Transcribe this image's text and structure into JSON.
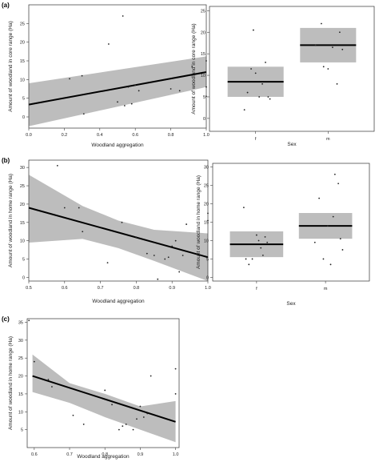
{
  "chart_data": [
    {
      "panel": "(a)",
      "type": "scatter",
      "xlabel": "Woodland aggregation",
      "ylabel": "Amount of woodland in core range (Ha)",
      "xlim": [
        0.0,
        1.0
      ],
      "ylim": [
        -3,
        30
      ],
      "xticks": [
        0.0,
        0.2,
        0.4,
        0.6,
        0.8,
        1.0
      ],
      "yticks": [
        0,
        5,
        10,
        15,
        20,
        25
      ],
      "points": [
        {
          "x": 0.23,
          "y": 10.2
        },
        {
          "x": 0.3,
          "y": 11.0
        },
        {
          "x": 0.31,
          "y": 0.8
        },
        {
          "x": 0.45,
          "y": 19.5
        },
        {
          "x": 0.5,
          "y": 4.0
        },
        {
          "x": 0.53,
          "y": 27.0
        },
        {
          "x": 0.54,
          "y": 3.0
        },
        {
          "x": 0.56,
          "y": 8.0
        },
        {
          "x": 0.58,
          "y": 3.5
        },
        {
          "x": 0.6,
          "y": 8.5
        },
        {
          "x": 0.62,
          "y": 7.0
        },
        {
          "x": 0.8,
          "y": 7.5
        },
        {
          "x": 0.85,
          "y": 7.0
        },
        {
          "x": 0.92,
          "y": 13.5
        },
        {
          "x": 1.0,
          "y": 15.0
        },
        {
          "x": 1.0,
          "y": 8.0
        },
        {
          "x": 1.0,
          "y": 5.5
        }
      ],
      "fit": {
        "x": [
          0.0,
          1.0
        ],
        "y": [
          3.3,
          12.0
        ]
      },
      "band": {
        "x": [
          0.0,
          1.0
        ],
        "lower": [
          -2.5,
          8.0
        ],
        "upper": [
          9.0,
          16.2
        ]
      }
    },
    {
      "panel": "",
      "type": "box",
      "xlabel": "Sex",
      "ylabel": "Amount of woodland in core range (Ha)",
      "categories": [
        "f",
        "m"
      ],
      "ylim": [
        -3,
        26
      ],
      "yticks": [
        0,
        5,
        10,
        15,
        20,
        25
      ],
      "boxes": [
        {
          "mean": 8.5,
          "lower": 5.0,
          "upper": 12.0
        },
        {
          "mean": 17.0,
          "lower": 13.0,
          "upper": 21.0
        }
      ],
      "points": [
        {
          "cat": 0,
          "offset": -0.25,
          "y": 2.0
        },
        {
          "cat": 0,
          "offset": -0.18,
          "y": 6.0
        },
        {
          "cat": 0,
          "offset": -0.1,
          "y": 11.5
        },
        {
          "cat": 0,
          "offset": -0.05,
          "y": 20.5
        },
        {
          "cat": 0,
          "offset": 0.0,
          "y": 10.5
        },
        {
          "cat": 0,
          "offset": 0.08,
          "y": 5.0
        },
        {
          "cat": 0,
          "offset": 0.15,
          "y": 8.0
        },
        {
          "cat": 0,
          "offset": 0.22,
          "y": 13.0
        },
        {
          "cat": 0,
          "offset": 0.28,
          "y": 5.0
        },
        {
          "cat": 0,
          "offset": 0.32,
          "y": 4.5
        },
        {
          "cat": 1,
          "offset": -0.28,
          "y": 17.0
        },
        {
          "cat": 1,
          "offset": -0.15,
          "y": 22.0
        },
        {
          "cat": 1,
          "offset": -0.1,
          "y": 12.0
        },
        {
          "cat": 1,
          "offset": 0.0,
          "y": 11.5
        },
        {
          "cat": 1,
          "offset": 0.1,
          "y": 16.5
        },
        {
          "cat": 1,
          "offset": 0.2,
          "y": 8.0
        },
        {
          "cat": 1,
          "offset": 0.26,
          "y": 20.0
        },
        {
          "cat": 1,
          "offset": 0.32,
          "y": 16.0
        }
      ]
    },
    {
      "panel": "(b)",
      "type": "scatter",
      "xlabel": "Woodland aggregation",
      "ylabel": "Amount of woodland in home range (Ha)",
      "xlim": [
        0.5,
        1.0
      ],
      "ylim": [
        -1,
        32
      ],
      "xticks": [
        0.5,
        0.6,
        0.7,
        0.8,
        0.9,
        1.0
      ],
      "yticks": [
        0,
        5,
        10,
        15,
        20,
        25,
        30
      ],
      "points": [
        {
          "x": 0.58,
          "y": 30.5
        },
        {
          "x": 0.6,
          "y": 19.0
        },
        {
          "x": 0.64,
          "y": 19.0
        },
        {
          "x": 0.65,
          "y": 12.5
        },
        {
          "x": 0.72,
          "y": 4.0
        },
        {
          "x": 0.76,
          "y": 15.0
        },
        {
          "x": 0.8,
          "y": 11.0
        },
        {
          "x": 0.83,
          "y": 6.5
        },
        {
          "x": 0.85,
          "y": 6.0
        },
        {
          "x": 0.86,
          "y": -0.5
        },
        {
          "x": 0.88,
          "y": 5.0
        },
        {
          "x": 0.89,
          "y": 5.5
        },
        {
          "x": 0.9,
          "y": 8.5
        },
        {
          "x": 0.91,
          "y": 10.0
        },
        {
          "x": 0.92,
          "y": 1.5
        },
        {
          "x": 0.93,
          "y": 6.0
        },
        {
          "x": 0.94,
          "y": 14.5
        },
        {
          "x": 1.0,
          "y": 17.5
        },
        {
          "x": 1.0,
          "y": 15.5
        }
      ],
      "fit": {
        "x": [
          0.5,
          1.0
        ],
        "y": [
          19.0,
          5.5
        ]
      },
      "band": {
        "x": [
          0.5,
          0.65,
          0.75,
          0.85,
          1.0
        ],
        "lower": [
          9.5,
          10.5,
          8.0,
          4.5,
          -1.0
        ],
        "upper": [
          28.0,
          19.5,
          15.5,
          13.0,
          12.0
        ]
      }
    },
    {
      "panel": "",
      "type": "box",
      "xlabel": "Sex",
      "ylabel": "Amount of woodland in home range (Ha)",
      "categories": [
        "f",
        "m"
      ],
      "ylim": [
        -1,
        31
      ],
      "yticks": [
        0,
        5,
        10,
        15,
        20,
        25,
        30
      ],
      "boxes": [
        {
          "mean": 9.0,
          "lower": 5.5,
          "upper": 12.5
        },
        {
          "mean": 14.0,
          "lower": 10.5,
          "upper": 17.5
        }
      ],
      "points": [
        {
          "cat": 0,
          "offset": -0.3,
          "y": 19.0
        },
        {
          "cat": 0,
          "offset": -0.25,
          "y": 5.0
        },
        {
          "cat": 0,
          "offset": -0.18,
          "y": 3.5
        },
        {
          "cat": 0,
          "offset": -0.1,
          "y": 5.0
        },
        {
          "cat": 0,
          "offset": 0.0,
          "y": 11.5
        },
        {
          "cat": 0,
          "offset": 0.05,
          "y": 10.0
        },
        {
          "cat": 0,
          "offset": 0.1,
          "y": 8.0
        },
        {
          "cat": 0,
          "offset": 0.15,
          "y": 6.0
        },
        {
          "cat": 0,
          "offset": 0.2,
          "y": 11.0
        },
        {
          "cat": 0,
          "offset": 0.25,
          "y": 9.5
        },
        {
          "cat": 1,
          "offset": -0.25,
          "y": 9.5
        },
        {
          "cat": 1,
          "offset": -0.15,
          "y": 21.5
        },
        {
          "cat": 1,
          "offset": -0.05,
          "y": 5.0
        },
        {
          "cat": 1,
          "offset": 0.05,
          "y": 14.0
        },
        {
          "cat": 1,
          "offset": 0.12,
          "y": 3.5
        },
        {
          "cat": 1,
          "offset": 0.18,
          "y": 16.5
        },
        {
          "cat": 1,
          "offset": 0.22,
          "y": 28.0
        },
        {
          "cat": 1,
          "offset": 0.3,
          "y": 25.5
        },
        {
          "cat": 1,
          "offset": 0.35,
          "y": 10.5
        },
        {
          "cat": 1,
          "offset": 0.4,
          "y": 7.5
        }
      ]
    },
    {
      "panel": "(c)",
      "type": "scatter",
      "xlabel": "Woodland aggregation",
      "ylabel": "Amount of woodland in home range (Ha)",
      "xlim": [
        0.58,
        1.01
      ],
      "ylim": [
        0,
        36
      ],
      "xticks": [
        0.6,
        0.7,
        0.8,
        0.9,
        1.0
      ],
      "yticks": [
        5,
        10,
        15,
        20,
        25,
        30,
        35
      ],
      "points": [
        {
          "x": 0.585,
          "y": 35.5
        },
        {
          "x": 0.6,
          "y": 24.0
        },
        {
          "x": 0.64,
          "y": 19.0
        },
        {
          "x": 0.65,
          "y": 17.0
        },
        {
          "x": 0.71,
          "y": 9.0
        },
        {
          "x": 0.74,
          "y": 6.5
        },
        {
          "x": 0.8,
          "y": 16.0
        },
        {
          "x": 0.82,
          "y": 12.0
        },
        {
          "x": 0.84,
          "y": 5.0
        },
        {
          "x": 0.85,
          "y": 6.0
        },
        {
          "x": 0.86,
          "y": 6.5
        },
        {
          "x": 0.88,
          "y": 5.0
        },
        {
          "x": 0.89,
          "y": 8.0
        },
        {
          "x": 0.9,
          "y": 11.5
        },
        {
          "x": 0.91,
          "y": 8.5
        },
        {
          "x": 0.92,
          "y": 9.5
        },
        {
          "x": 0.93,
          "y": 20.0
        },
        {
          "x": 1.0,
          "y": 22.0
        },
        {
          "x": 1.0,
          "y": 15.0
        }
      ],
      "fit": {
        "x": [
          0.595,
          1.0
        ],
        "y": [
          20.0,
          7.2
        ]
      },
      "band": {
        "x": [
          0.595,
          0.7,
          0.8,
          0.9,
          1.0
        ],
        "lower": [
          15.5,
          12.5,
          8.5,
          5.0,
          1.5
        ],
        "upper": [
          26.0,
          18.0,
          15.0,
          11.5,
          13.0
        ]
      }
    }
  ]
}
